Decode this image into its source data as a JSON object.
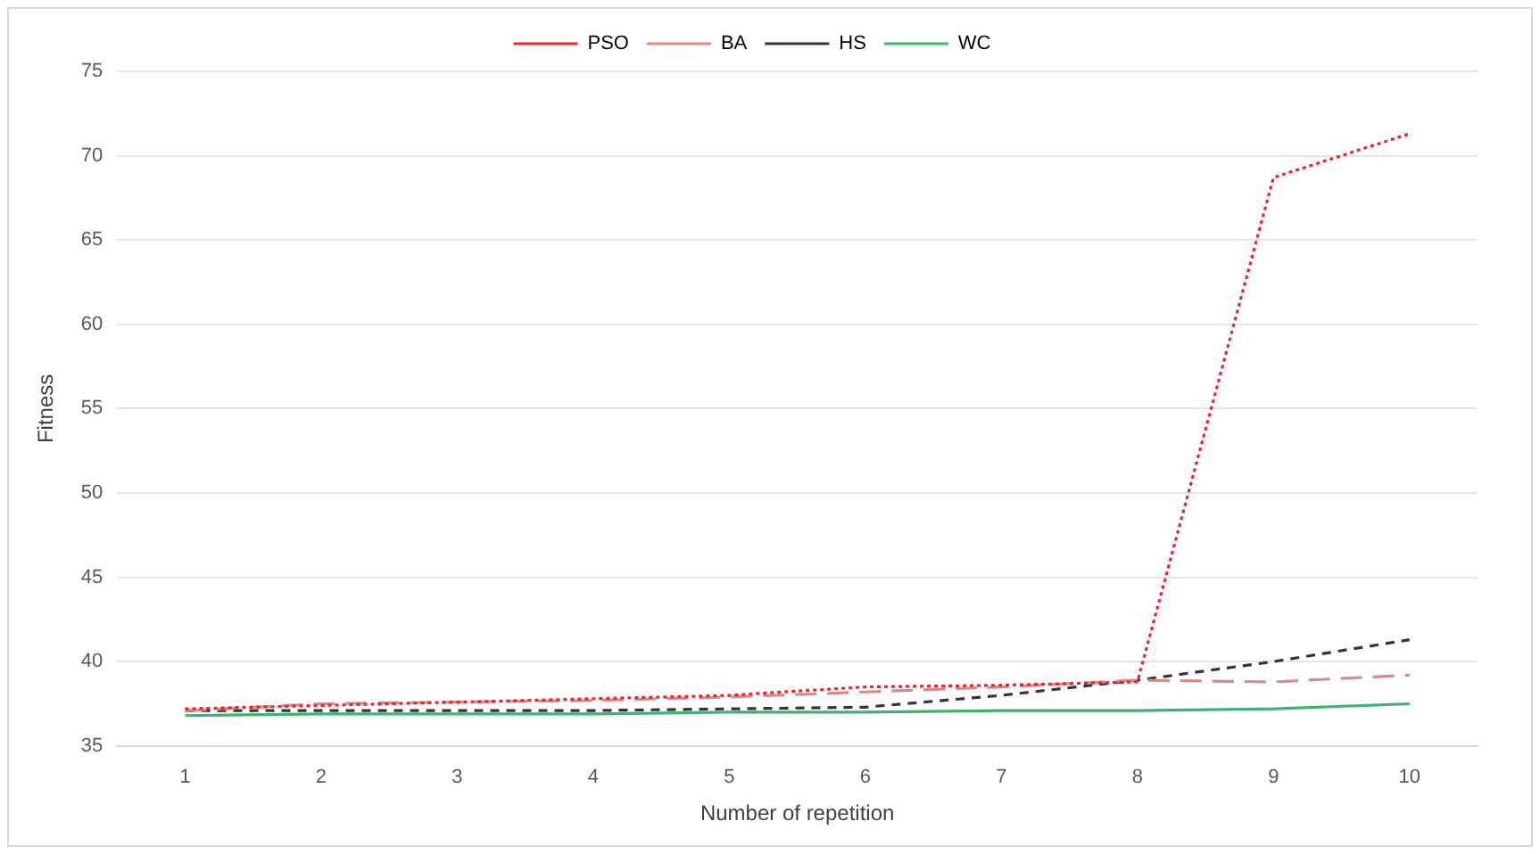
{
  "chart_data": {
    "type": "line",
    "xlabel": "Number of repetition",
    "ylabel": "Fitness",
    "categories": [
      "1",
      "2",
      "3",
      "4",
      "5",
      "6",
      "7",
      "8",
      "9",
      "10"
    ],
    "series": [
      {
        "name": "PSO",
        "color": "#e8252e",
        "line_style": "dotted",
        "values": [
          37.2,
          37.4,
          37.6,
          37.8,
          38.0,
          38.5,
          38.6,
          38.8,
          68.7,
          71.3
        ]
      },
      {
        "name": "BA",
        "color": "#d98a86",
        "line_style": "dashed",
        "values": [
          37.1,
          37.5,
          37.6,
          37.7,
          37.9,
          38.2,
          38.5,
          38.9,
          38.8,
          39.2
        ]
      },
      {
        "name": "HS",
        "color": "#3b2f3f",
        "line_style": "dashed",
        "values": [
          37.1,
          37.1,
          37.1,
          37.1,
          37.2,
          37.3,
          38.0,
          38.9,
          40.0,
          41.3
        ]
      },
      {
        "name": "WC",
        "color": "#3cb371",
        "line_style": "solid",
        "values": [
          36.8,
          36.9,
          36.9,
          36.9,
          37.0,
          37.0,
          37.1,
          37.1,
          37.2,
          37.5
        ]
      }
    ],
    "ylim": [
      35,
      75
    ],
    "yticks": [
      35,
      40,
      45,
      50,
      55,
      60,
      65,
      70,
      75
    ],
    "grid": "y",
    "legend": "top",
    "marker": "none"
  }
}
